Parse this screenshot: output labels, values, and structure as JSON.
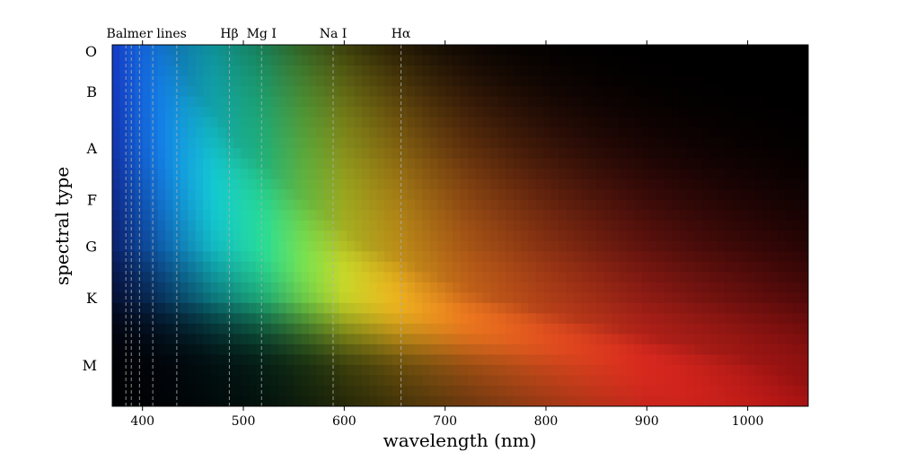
{
  "chart_data": {
    "type": "heatmap",
    "xlabel": "wavelength (nm)",
    "ylabel": "spectral type",
    "xlim": [
      370,
      1060
    ],
    "x_ticks": [
      400,
      500,
      600,
      700,
      800,
      900,
      1000
    ],
    "y_ticks": [
      "O",
      "B",
      "A",
      "F",
      "G",
      "K",
      "M"
    ],
    "y_tick_rows": [
      0.1,
      4,
      9.5,
      14.5,
      19,
      24,
      30.5
    ],
    "rows": 35,
    "top_ticks": [
      400,
      500,
      600,
      700,
      800,
      900,
      1000
    ],
    "balmer_lines": [
      383.5,
      388.9,
      397.0,
      410.2,
      434.0
    ],
    "annotations": [
      {
        "label": "Balmer lines",
        "wavelength": 404
      },
      {
        "label": "Hβ",
        "wavelength": 486.1
      },
      {
        "label": "Mg I",
        "wavelength": 518.0
      },
      {
        "label": "Na I",
        "wavelength": 589.0
      },
      {
        "label": "Hα",
        "wavelength": 656.3
      }
    ],
    "line_markers": [
      486.1,
      518.0,
      589.0,
      656.3
    ],
    "spectral_peaks": [
      {
        "type": "O",
        "row": 0,
        "peak_nm": 385
      },
      {
        "type": "B",
        "row": 4,
        "peak_nm": 400
      },
      {
        "type": "A",
        "row": 9.5,
        "peak_nm": 430
      },
      {
        "type": "F",
        "row": 14.5,
        "peak_nm": 480
      },
      {
        "type": "G",
        "row": 19,
        "peak_nm": 530
      },
      {
        "type": "K",
        "row": 24,
        "peak_nm": 640
      },
      {
        "type": "M",
        "row": 30.5,
        "peak_nm": 900
      },
      {
        "type": "M",
        "row": 34,
        "peak_nm": 970
      }
    ],
    "colors": {
      "background": "#000000",
      "marker_line": "#b0b0b0"
    },
    "grid": false,
    "legend": "none"
  }
}
